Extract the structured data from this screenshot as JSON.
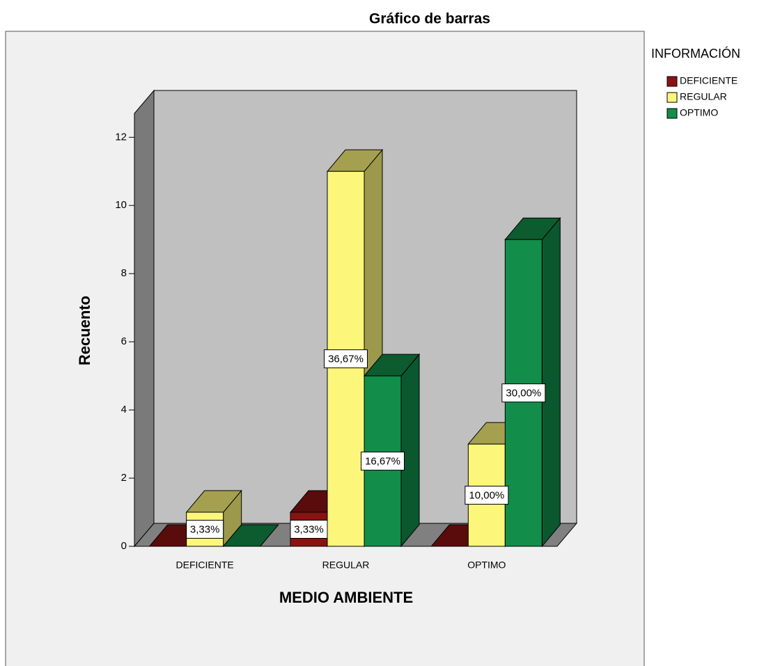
{
  "chart_data": {
    "type": "bar3d",
    "title": "Gráfico de barras",
    "x_label": "MEDIO AMBIENTE",
    "y_label": "Recuento",
    "legend_title": "INFORMACIÓN",
    "legend": "right",
    "categories": [
      "DEFICIENTE",
      "REGULAR",
      "OPTIMO"
    ],
    "series": [
      {
        "name": "DEFICIENTE",
        "color": "#8b1212",
        "values": [
          0,
          1,
          0
        ],
        "value_labels": [
          null,
          "3,33%",
          null
        ]
      },
      {
        "name": "REGULAR",
        "color": "#fcf67b",
        "values": [
          1,
          11,
          3
        ],
        "value_labels": [
          "3,33%",
          "36,67%",
          "10,00%"
        ]
      },
      {
        "name": "OPTIMO",
        "color": "#128d4a",
        "values": [
          0,
          5,
          9
        ],
        "value_labels": [
          null,
          "16,67%",
          "30,00%"
        ]
      }
    ],
    "ylim": [
      0,
      12.7
    ],
    "yticks": [
      0,
      2,
      4,
      6,
      8,
      10,
      12
    ]
  }
}
